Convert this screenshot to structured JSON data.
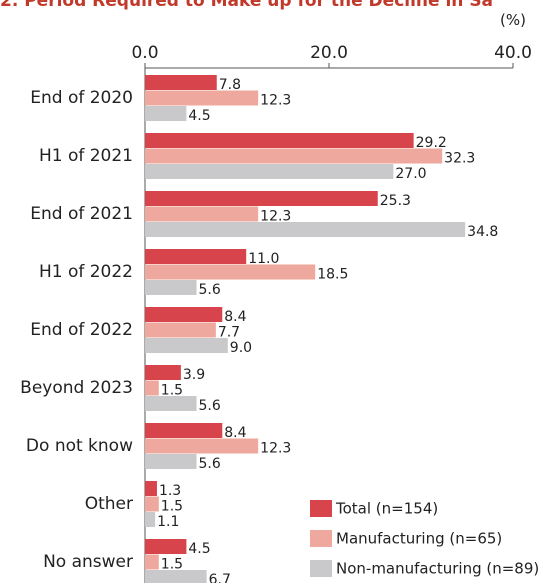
{
  "chart_data": {
    "type": "bar",
    "orientation": "horizontal",
    "title": "2. Period Required to Make up for the Decline in Sa",
    "unit_label": "(%)",
    "categories": [
      "End of 2020",
      "H1 of 2021",
      "End of 2021",
      "H1 of 2022",
      "End of 2022",
      "Beyond 2023",
      "Do not know",
      "Other",
      "No answer"
    ],
    "series": [
      {
        "name": "Total (n=154)",
        "color": "#d8444b",
        "values": [
          7.8,
          29.2,
          25.3,
          11.0,
          8.4,
          3.9,
          8.4,
          1.3,
          4.5
        ],
        "value_labels": [
          "7.8",
          "29.2",
          "25.3",
          "11.0",
          "8.4",
          "3.9",
          "8.4",
          "1.3",
          "4.5"
        ]
      },
      {
        "name": "Manufacturing (n=65)",
        "color": "#eea89e",
        "values": [
          12.3,
          32.3,
          12.3,
          18.5,
          7.7,
          1.5,
          12.3,
          1.5,
          1.5
        ],
        "value_labels": [
          "12.3",
          "32.3",
          "12.3",
          "18.5",
          "7.7",
          "1.5",
          "12.3",
          "1.5",
          "1.5"
        ]
      },
      {
        "name": "Non-manufacturing (n=89)",
        "color": "#c9c9cb",
        "values": [
          4.5,
          27.0,
          34.8,
          5.6,
          9.0,
          5.6,
          5.6,
          1.1,
          6.7
        ],
        "value_labels": [
          "4.5",
          "27.0",
          "34.8",
          "5.6",
          "9.0",
          "5.6",
          "5.6",
          "1.1",
          "6.7"
        ]
      }
    ],
    "xlim": [
      0,
      40
    ],
    "xticks": [
      {
        "value": 0,
        "label": "0.0"
      },
      {
        "value": 20,
        "label": "20.0"
      },
      {
        "value": 40,
        "label": "40.0"
      }
    ],
    "legend": "lower right"
  }
}
